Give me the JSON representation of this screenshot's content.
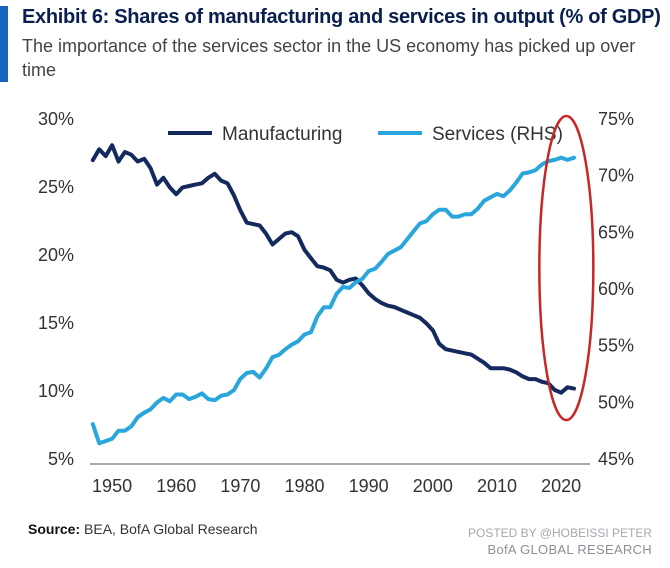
{
  "header": {
    "title": "Exhibit 6: Shares of manufacturing and services in output (% of GDP)",
    "subtitle": "The importance of the services sector in the US economy has picked up over time"
  },
  "footer": {
    "source_label": "Source:",
    "source_text": "BEA, BofA Global Research",
    "watermark_top": "POSTED BY @HOBEISSI PETER",
    "watermark_bottom": "BofA GLOBAL RESEARCH"
  },
  "colors": {
    "manufacturing": "#14295e",
    "services": "#2aa6dc",
    "highlight_ellipse": "#c62828",
    "accent_bar": "#1565c0"
  },
  "chart_data": {
    "type": "line",
    "x_ticks": [
      1950,
      1960,
      1970,
      1980,
      1990,
      2000,
      2010,
      2020
    ],
    "xlim": [
      1950,
      2023
    ],
    "left_axis": {
      "ylim": [
        5,
        30
      ],
      "ticks": [
        "5%",
        "10%",
        "15%",
        "20%",
        "25%",
        "30%"
      ]
    },
    "right_axis": {
      "ylim": [
        45,
        75
      ],
      "ticks": [
        "45%",
        "50%",
        "55%",
        "60%",
        "65%",
        "70%",
        "75%"
      ]
    },
    "legend_placement": "top-center",
    "series": [
      {
        "name": "Manufacturing",
        "axis": "left",
        "x": [
          1947,
          1948,
          1949,
          1950,
          1951,
          1952,
          1953,
          1954,
          1955,
          1956,
          1957,
          1958,
          1959,
          1960,
          1961,
          1962,
          1963,
          1964,
          1965,
          1966,
          1967,
          1968,
          1969,
          1970,
          1971,
          1972,
          1973,
          1974,
          1975,
          1976,
          1977,
          1978,
          1979,
          1980,
          1981,
          1982,
          1983,
          1984,
          1985,
          1986,
          1987,
          1988,
          1989,
          1990,
          1991,
          1992,
          1993,
          1994,
          1995,
          1996,
          1997,
          1998,
          1999,
          2000,
          2001,
          2002,
          2003,
          2004,
          2005,
          2006,
          2007,
          2008,
          2009,
          2010,
          2011,
          2012,
          2013,
          2014,
          2015,
          2016,
          2017,
          2018,
          2019,
          2020,
          2021,
          2022
        ],
        "values": [
          26.9,
          27.7,
          27.2,
          28.0,
          26.8,
          27.5,
          27.3,
          26.8,
          27.0,
          26.3,
          25.1,
          25.6,
          24.9,
          24.4,
          24.9,
          25.0,
          25.1,
          25.2,
          25.6,
          25.9,
          25.4,
          25.2,
          24.3,
          23.2,
          22.3,
          22.2,
          22.1,
          21.5,
          20.7,
          21.1,
          21.5,
          21.6,
          21.3,
          20.3,
          19.7,
          19.1,
          19.0,
          18.8,
          18.1,
          17.9,
          18.1,
          18.2,
          17.7,
          17.1,
          16.7,
          16.4,
          16.2,
          16.1,
          15.9,
          15.7,
          15.5,
          15.3,
          14.9,
          14.4,
          13.4,
          13.0,
          12.9,
          12.8,
          12.7,
          12.6,
          12.3,
          12.0,
          11.6,
          11.6,
          11.6,
          11.5,
          11.3,
          11.0,
          10.8,
          10.8,
          10.6,
          10.5,
          10.0,
          9.8,
          10.2,
          10.1
        ]
      },
      {
        "name": "Services (RHS)",
        "axis": "right",
        "x": [
          1947,
          1948,
          1949,
          1950,
          1951,
          1952,
          1953,
          1954,
          1955,
          1956,
          1957,
          1958,
          1959,
          1960,
          1961,
          1962,
          1963,
          1964,
          1965,
          1966,
          1967,
          1968,
          1969,
          1970,
          1971,
          1972,
          1973,
          1974,
          1975,
          1976,
          1977,
          1978,
          1979,
          1980,
          1981,
          1982,
          1983,
          1984,
          1985,
          1986,
          1987,
          1988,
          1989,
          1990,
          1991,
          1992,
          1993,
          1994,
          1995,
          1996,
          1997,
          1998,
          1999,
          2000,
          2001,
          2002,
          2003,
          2004,
          2005,
          2006,
          2007,
          2008,
          2009,
          2010,
          2011,
          2012,
          2013,
          2014,
          2015,
          2016,
          2017,
          2018,
          2019,
          2020,
          2021,
          2022
        ],
        "values": [
          48.0,
          46.3,
          46.5,
          46.7,
          47.4,
          47.4,
          47.8,
          48.6,
          49.0,
          49.3,
          49.9,
          50.3,
          50.0,
          50.6,
          50.6,
          50.2,
          50.4,
          50.7,
          50.2,
          50.1,
          50.5,
          50.6,
          51.0,
          52.0,
          52.5,
          52.6,
          52.1,
          52.9,
          53.9,
          54.1,
          54.6,
          55.0,
          55.3,
          55.9,
          56.1,
          57.5,
          58.3,
          58.3,
          59.5,
          60.1,
          60.0,
          60.5,
          60.8,
          61.5,
          61.7,
          62.3,
          63.0,
          63.3,
          63.6,
          64.3,
          65.0,
          65.7,
          65.9,
          66.5,
          66.9,
          66.9,
          66.3,
          66.3,
          66.5,
          66.5,
          67.0,
          67.7,
          68.0,
          68.3,
          68.1,
          68.6,
          69.3,
          70.1,
          70.2,
          70.4,
          70.9,
          71.2,
          71.3,
          71.5,
          71.3,
          71.5
        ]
      }
    ],
    "annotation": {
      "type": "ellipse",
      "x_range": [
        2018,
        2023
      ]
    }
  }
}
